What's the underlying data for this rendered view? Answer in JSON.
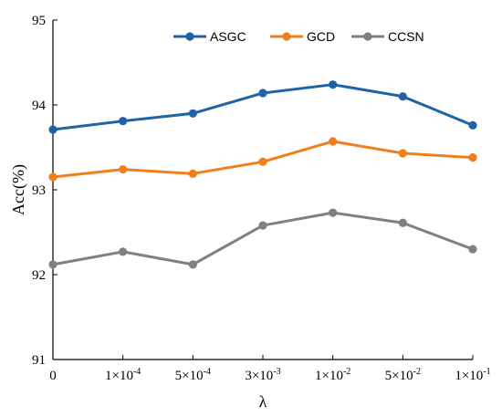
{
  "chart_data": {
    "type": "line",
    "title": "",
    "xlabel": "λ",
    "ylabel": "Acc(%)",
    "categories": [
      {
        "base": "0",
        "exp": ""
      },
      {
        "base": "1×10",
        "exp": "-4"
      },
      {
        "base": "5×10",
        "exp": "-4"
      },
      {
        "base": "3×10",
        "exp": "-3"
      },
      {
        "base": "1×10",
        "exp": "-2"
      },
      {
        "base": "5×10",
        "exp": "-2"
      },
      {
        "base": "1×10",
        "exp": "-1"
      }
    ],
    "ylim": [
      91,
      95
    ],
    "yticks": [
      91,
      92,
      93,
      94,
      95
    ],
    "grid": false,
    "legend_position": "top",
    "series": [
      {
        "name": "ASGC",
        "color": "#1f63a6",
        "values": [
          93.71,
          93.81,
          93.9,
          94.14,
          94.24,
          94.1,
          93.76
        ]
      },
      {
        "name": "GCD",
        "color": "#f07f1b",
        "values": [
          93.15,
          93.24,
          93.19,
          93.33,
          93.57,
          93.43,
          93.38
        ]
      },
      {
        "name": "CCSN",
        "color": "#808080",
        "values": [
          92.12,
          92.27,
          92.12,
          92.58,
          92.73,
          92.61,
          92.3
        ]
      }
    ]
  }
}
